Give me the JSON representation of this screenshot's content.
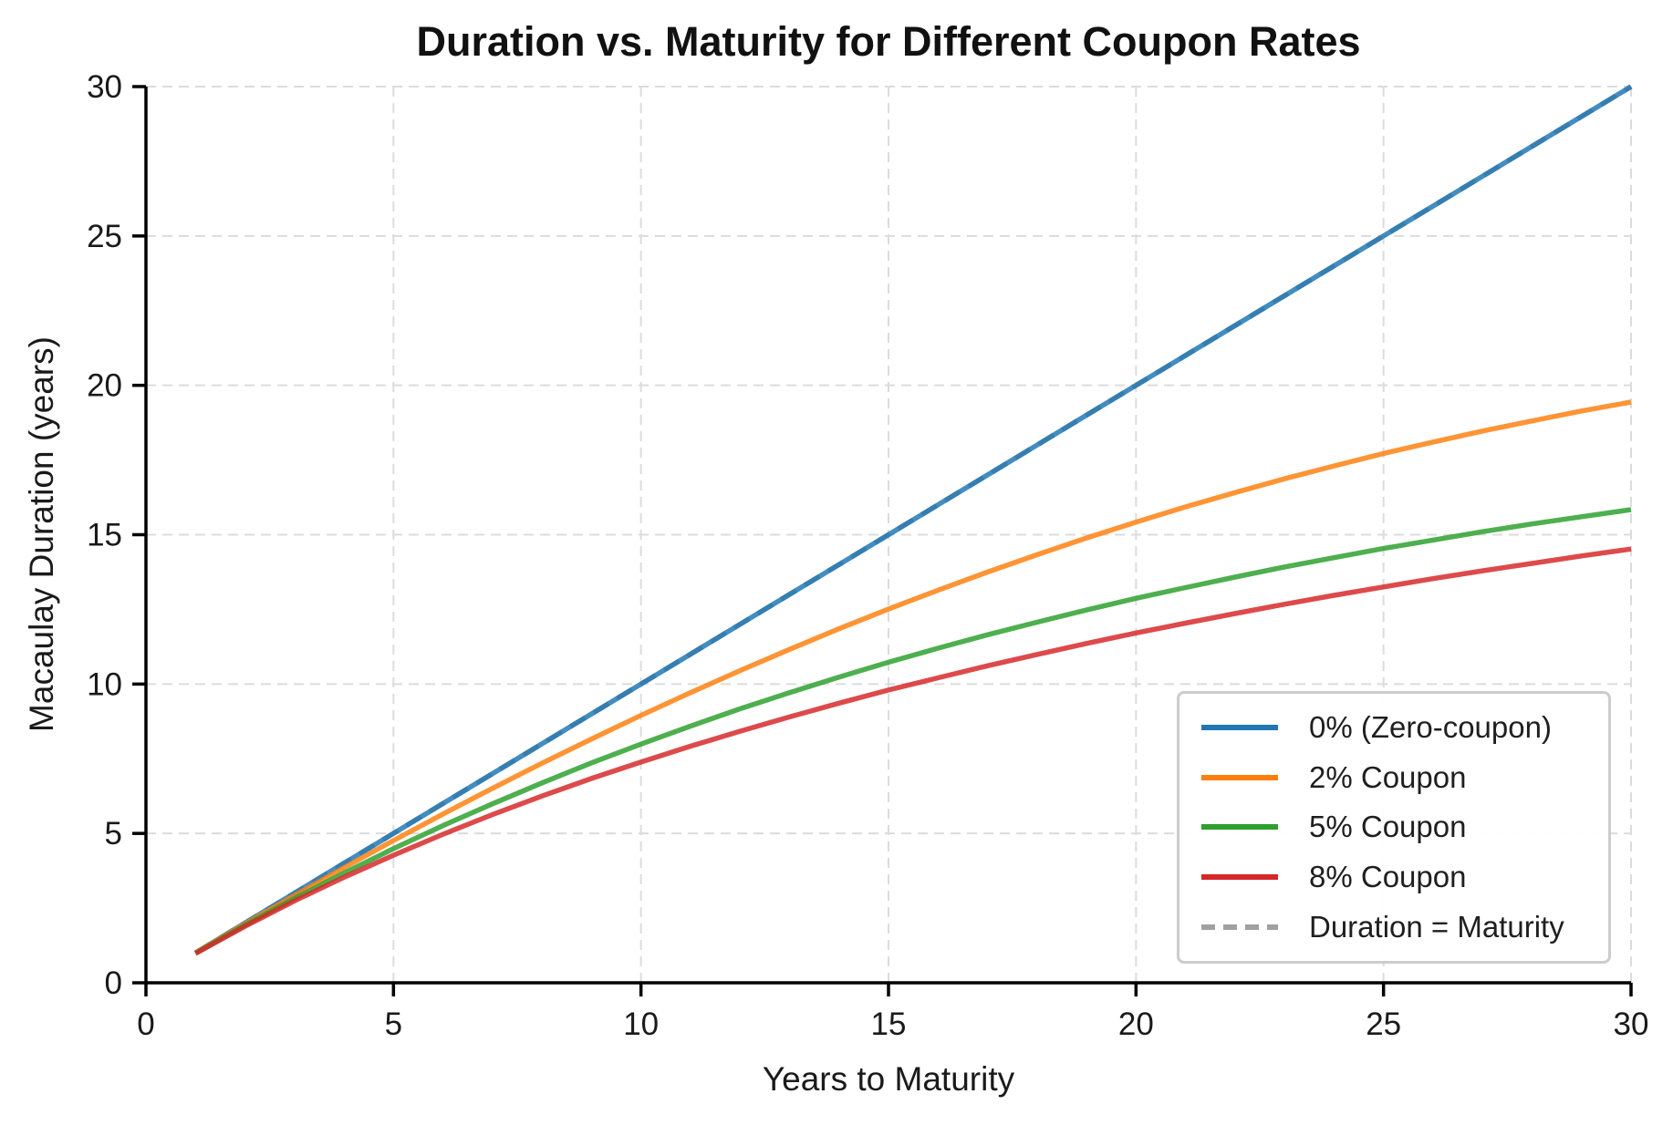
{
  "chart_data": {
    "type": "line",
    "title": "Duration vs. Maturity for Different Coupon Rates",
    "xlabel": "Years to Maturity",
    "ylabel": "Macaulay Duration (years)",
    "xlim": [
      0,
      30
    ],
    "ylim": [
      0,
      30
    ],
    "xticks": [
      0,
      5,
      10,
      15,
      20,
      25,
      30
    ],
    "yticks": [
      0,
      5,
      10,
      15,
      20,
      25,
      30
    ],
    "grid": true,
    "grid_style": "dashed",
    "legend_position": "lower right",
    "background": "#ffffff",
    "x": [
      1,
      2,
      3,
      4,
      5,
      6,
      7,
      8,
      9,
      10,
      11,
      12,
      13,
      14,
      15,
      16,
      17,
      18,
      19,
      20,
      21,
      22,
      23,
      24,
      25,
      26,
      27,
      28,
      29,
      30
    ],
    "series": [
      {
        "name": "0% (Zero-coupon)",
        "color": "#1f77b4",
        "style": "solid",
        "values": [
          1,
          2,
          3,
          4,
          5,
          6,
          7,
          8,
          9,
          10,
          11,
          12,
          13,
          14,
          15,
          16,
          17,
          18,
          19,
          20,
          21,
          22,
          23,
          24,
          25,
          26,
          27,
          28,
          29,
          30
        ]
      },
      {
        "name": "2% Coupon",
        "color": "#ff7f0e",
        "style": "solid",
        "values": [
          1.0,
          1.97,
          2.92,
          3.85,
          4.76,
          5.65,
          6.51,
          7.35,
          8.16,
          8.95,
          9.71,
          10.45,
          11.16,
          11.85,
          12.51,
          13.14,
          13.75,
          14.33,
          14.89,
          15.42,
          15.93,
          16.41,
          16.87,
          17.3,
          17.72,
          18.1,
          18.47,
          18.81,
          19.14,
          19.44
        ]
      },
      {
        "name": "5% Coupon",
        "color": "#2ca02c",
        "style": "solid",
        "values": [
          0.99,
          1.93,
          2.82,
          3.67,
          4.49,
          5.26,
          5.99,
          6.69,
          7.36,
          7.99,
          8.59,
          9.17,
          9.71,
          10.23,
          10.73,
          11.2,
          11.65,
          12.07,
          12.48,
          12.87,
          13.23,
          13.58,
          13.92,
          14.23,
          14.54,
          14.82,
          15.1,
          15.36,
          15.6,
          15.84
        ]
      },
      {
        "name": "8% Coupon",
        "color": "#d62728",
        "style": "solid",
        "values": [
          0.98,
          1.89,
          2.74,
          3.53,
          4.27,
          4.97,
          5.63,
          6.25,
          6.84,
          7.39,
          7.92,
          8.42,
          8.9,
          9.36,
          9.8,
          10.21,
          10.61,
          10.99,
          11.36,
          11.71,
          12.04,
          12.36,
          12.67,
          12.97,
          13.25,
          13.53,
          13.79,
          14.04,
          14.29,
          14.52
        ]
      },
      {
        "name": "Duration = Maturity",
        "color": "#a0a0a0",
        "style": "dashed",
        "values": [
          1,
          2,
          3,
          4,
          5,
          6,
          7,
          8,
          9,
          10,
          11,
          12,
          13,
          14,
          15,
          16,
          17,
          18,
          19,
          20,
          21,
          22,
          23,
          24,
          25,
          26,
          27,
          28,
          29,
          30
        ]
      }
    ],
    "style_colors": {
      "grid": "#dcdcdc",
      "spine": "#000000",
      "tick_label": "#1a1a1a"
    }
  }
}
